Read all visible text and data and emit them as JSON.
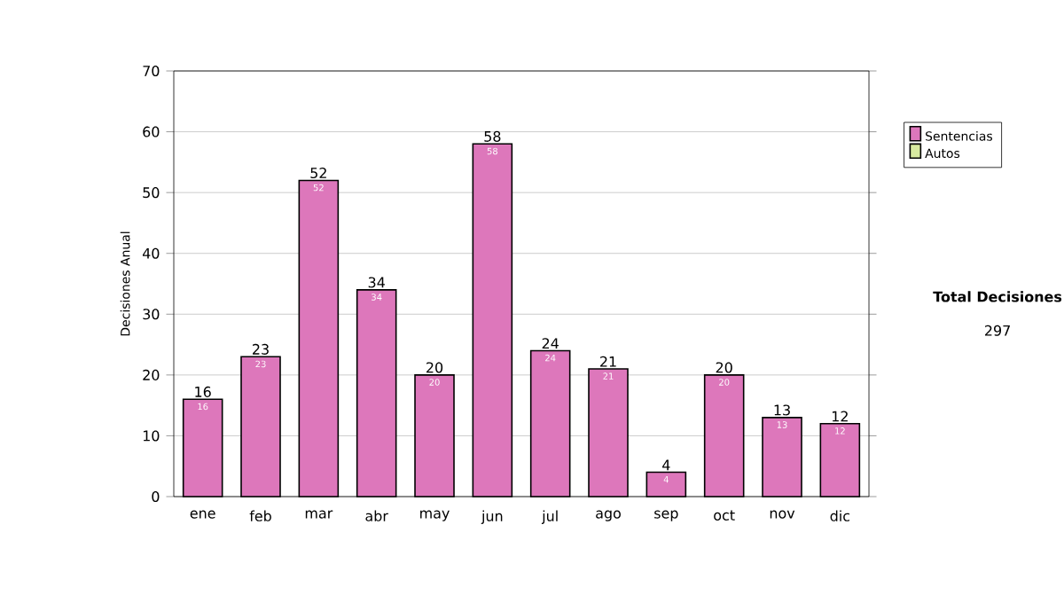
{
  "chart_data": {
    "type": "bar",
    "ylabel": "Decisiones Anual",
    "categories": [
      "ene",
      "feb",
      "mar",
      "abr",
      "may",
      "jun",
      "jul",
      "ago",
      "sep",
      "oct",
      "nov",
      "dic"
    ],
    "series": [
      {
        "name": "Sentencias",
        "color": "#dd77bb",
        "values": [
          16,
          23,
          52,
          34,
          20,
          58,
          24,
          21,
          4,
          20,
          13,
          12
        ],
        "value_labels": [
          "16",
          "23",
          "52",
          "34",
          "20",
          "58",
          "24",
          "21",
          "4",
          "20",
          "13",
          "12"
        ]
      },
      {
        "name": "Autos",
        "color": "#d8eaa0",
        "values": [
          0,
          0,
          0,
          0,
          0,
          0,
          0,
          0,
          0,
          0,
          0,
          0
        ]
      }
    ],
    "stacked": true,
    "ylim": [
      0,
      70
    ],
    "yticks": [
      0,
      10,
      20,
      30,
      40,
      50,
      60,
      70
    ],
    "grid": "y",
    "legend": "right",
    "annotations": [
      "Total Decisiones",
      "297"
    ]
  }
}
